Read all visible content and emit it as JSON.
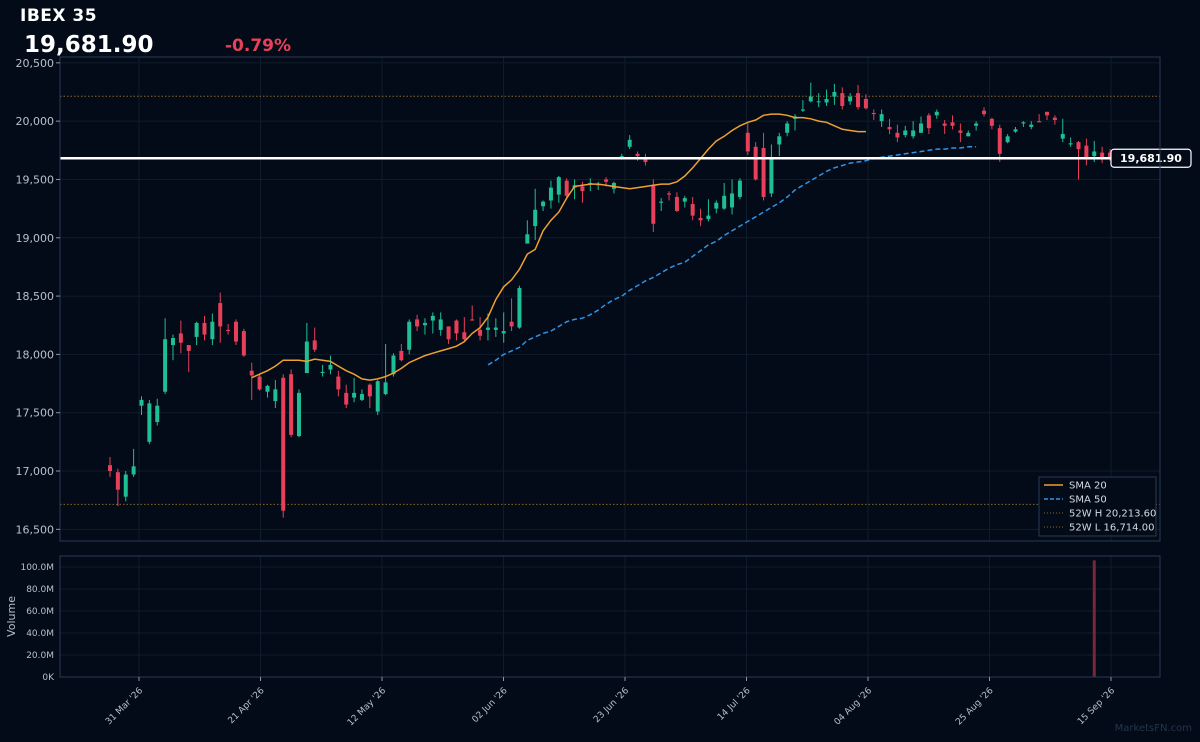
{
  "header": {
    "title": "IBEX 35",
    "last_price": "19,681.90",
    "change_pct": "-0.79%"
  },
  "colors": {
    "background": "#020b17",
    "panel_border": "#2b3b55",
    "grid": "#0f1c2c",
    "up": "#1fbf95",
    "down": "#e8405a",
    "sma20": "#f0a030",
    "sma50": "#2f93e6",
    "high_low_line": "#8a6a2a",
    "last_price_line": "#ffffff",
    "volume_bar": "#7a2638"
  },
  "last_price_label": "19,681.90",
  "watermark": "MarketsFN.com",
  "chart_data": {
    "type": "candlestick",
    "title": "IBEX 35",
    "y_axis": {
      "ylim": [
        16400,
        20550
      ],
      "ticks": [
        "16,500",
        "17,000",
        "17,500",
        "18,000",
        "18,500",
        "19,000",
        "19,500",
        "20,000",
        "20,500"
      ]
    },
    "x_axis": {
      "tick_labels": [
        "31 Mar '26",
        "21 Apr '26",
        "12 May '26",
        "02 Jun '26",
        "23 Jun '26",
        "14 Jul '26",
        "04 Aug '26",
        "25 Aug '26",
        "15 Sep '26"
      ]
    },
    "grid": true,
    "legend_position": "bottom-right",
    "candles": [
      [
        17050,
        17000,
        17120,
        16950
      ],
      [
        16990,
        16840,
        17020,
        16700
      ],
      [
        16780,
        16970,
        17000,
        16740
      ],
      [
        16970,
        17040,
        17190,
        16950
      ],
      [
        17560,
        17610,
        17640,
        17480
      ],
      [
        17250,
        17580,
        17610,
        17230
      ],
      [
        17420,
        17560,
        17620,
        17390
      ],
      [
        17680,
        18130,
        18310,
        17660
      ],
      [
        18080,
        18140,
        18170,
        17950
      ],
      [
        18180,
        18100,
        18290,
        18010
      ],
      [
        18080,
        18030,
        18040,
        17850
      ],
      [
        18150,
        18270,
        18280,
        18080
      ],
      [
        18270,
        18170,
        18330,
        18120
      ],
      [
        18130,
        18280,
        18350,
        18080
      ],
      [
        18440,
        18240,
        18530,
        18100
      ],
      [
        18210,
        18200,
        18260,
        18170
      ],
      [
        18280,
        18110,
        18300,
        18080
      ],
      [
        18200,
        17990,
        18220,
        17980
      ],
      [
        17860,
        17820,
        17930,
        17610
      ],
      [
        17810,
        17700,
        17830,
        17690
      ],
      [
        17680,
        17730,
        17740,
        17630
      ],
      [
        17600,
        17700,
        17780,
        17540
      ],
      [
        17800,
        16660,
        17830,
        16600
      ],
      [
        17830,
        17310,
        17870,
        17290
      ],
      [
        17300,
        17670,
        17700,
        17290
      ],
      [
        17840,
        18110,
        18270,
        17910
      ],
      [
        18120,
        18040,
        18230,
        18020
      ],
      [
        17840,
        17850,
        17910,
        17810
      ],
      [
        17870,
        17910,
        17990,
        17830
      ],
      [
        17810,
        17700,
        17860,
        17640
      ],
      [
        17670,
        17570,
        17740,
        17540
      ],
      [
        17630,
        17670,
        17800,
        17590
      ],
      [
        17610,
        17660,
        17700,
        17600
      ],
      [
        17740,
        17640,
        17750,
        17540
      ],
      [
        17510,
        17770,
        17780,
        17480
      ],
      [
        17660,
        17760,
        18090,
        17650
      ],
      [
        17830,
        17990,
        18010,
        17810
      ],
      [
        18030,
        17950,
        18090,
        17940
      ],
      [
        18040,
        18280,
        18300,
        18000
      ],
      [
        18300,
        18240,
        18340,
        18200
      ],
      [
        18250,
        18270,
        18310,
        18170
      ],
      [
        18290,
        18330,
        18360,
        18180
      ],
      [
        18210,
        18300,
        18360,
        18160
      ],
      [
        18240,
        18130,
        18240,
        18090
      ],
      [
        18290,
        18180,
        18300,
        18120
      ],
      [
        18190,
        18130,
        18320,
        18110
      ],
      [
        18300,
        18290,
        18420,
        18290
      ],
      [
        18210,
        18160,
        18320,
        18120
      ],
      [
        18210,
        18230,
        18350,
        18120
      ],
      [
        18210,
        18230,
        18310,
        18150
      ],
      [
        18180,
        18200,
        18360,
        18100
      ],
      [
        18280,
        18240,
        18480,
        18200
      ],
      [
        18230,
        18570,
        18590,
        18220
      ],
      [
        18950,
        19030,
        19150,
        18990
      ],
      [
        19100,
        19240,
        19420,
        18980
      ],
      [
        19270,
        19310,
        19320,
        19230
      ],
      [
        19320,
        19430,
        19490,
        19250
      ],
      [
        19370,
        19520,
        19530,
        19300
      ],
      [
        19490,
        19360,
        19510,
        19340
      ],
      [
        19430,
        19450,
        19500,
        19330
      ],
      [
        19440,
        19400,
        19480,
        19300
      ],
      [
        19460,
        19470,
        19510,
        19400
      ],
      [
        19450,
        19460,
        19480,
        19410
      ],
      [
        19500,
        19480,
        19520,
        19440
      ],
      [
        19420,
        19470,
        19480,
        19380
      ],
      [
        19690,
        19700,
        19720,
        19670
      ],
      [
        19780,
        19840,
        19880,
        19760
      ],
      [
        19720,
        19700,
        19740,
        19660
      ],
      [
        19690,
        19650,
        19720,
        19620
      ],
      [
        19450,
        19120,
        19500,
        19050
      ],
      [
        19300,
        19310,
        19340,
        19230
      ],
      [
        19380,
        19370,
        19400,
        19320
      ],
      [
        19350,
        19230,
        19390,
        19220
      ],
      [
        19310,
        19340,
        19360,
        19260
      ],
      [
        19290,
        19190,
        19350,
        19150
      ],
      [
        19170,
        19150,
        19250,
        19100
      ],
      [
        19160,
        19190,
        19330,
        19140
      ],
      [
        19250,
        19300,
        19320,
        19210
      ],
      [
        19250,
        19360,
        19470,
        19240
      ],
      [
        19260,
        19380,
        19500,
        19200
      ],
      [
        19350,
        19490,
        19510,
        19330
      ],
      [
        19900,
        19740,
        19980,
        19710
      ],
      [
        19780,
        19500,
        19820,
        19490
      ],
      [
        19770,
        19350,
        19900,
        19320
      ],
      [
        19380,
        19690,
        19800,
        19350
      ],
      [
        19800,
        19870,
        19900,
        19700
      ],
      [
        19900,
        19980,
        20000,
        19870
      ],
      [
        20020,
        20040,
        20060,
        19920
      ],
      [
        20090,
        20100,
        20180,
        20080
      ],
      [
        20170,
        20210,
        20330,
        20160
      ],
      [
        20170,
        20170,
        20240,
        20120
      ],
      [
        20160,
        20190,
        20270,
        20130
      ],
      [
        20210,
        20250,
        20320,
        20140
      ],
      [
        20240,
        20130,
        20290,
        20100
      ],
      [
        20170,
        20210,
        20240,
        20140
      ],
      [
        20240,
        20120,
        20310,
        20100
      ],
      [
        20190,
        20110,
        20230,
        20100
      ],
      [
        20070,
        20060,
        20100,
        20010
      ],
      [
        20000,
        20060,
        20100,
        19950
      ],
      [
        19950,
        19930,
        20020,
        19890
      ],
      [
        19900,
        19860,
        19970,
        19820
      ],
      [
        19880,
        19920,
        19960,
        19860
      ],
      [
        19870,
        19920,
        20000,
        19850
      ],
      [
        19900,
        19980,
        20040,
        19900
      ],
      [
        20050,
        19940,
        20070,
        19890
      ],
      [
        20050,
        20080,
        20100,
        20020
      ],
      [
        19980,
        19960,
        20010,
        19890
      ],
      [
        19990,
        19960,
        20050,
        19930
      ],
      [
        19920,
        19900,
        19980,
        19820
      ],
      [
        19870,
        19900,
        19920,
        19870
      ],
      [
        19960,
        19980,
        20000,
        19920
      ],
      [
        20090,
        20060,
        20120,
        20040
      ],
      [
        20020,
        19960,
        20030,
        19930
      ],
      [
        19940,
        19720,
        19970,
        19650
      ],
      [
        19820,
        19870,
        19890,
        19810
      ],
      [
        19910,
        19930,
        19950,
        19900
      ],
      [
        19980,
        19990,
        20000,
        19950
      ],
      [
        19950,
        19970,
        20000,
        19930
      ],
      [
        20000,
        19990,
        20060,
        19990
      ],
      [
        20080,
        20050,
        20080,
        20010
      ],
      [
        20030,
        20010,
        20050,
        19970
      ],
      [
        19850,
        19890,
        20020,
        19820
      ],
      [
        19800,
        19810,
        19860,
        19780
      ],
      [
        19820,
        19760,
        19830,
        19500
      ],
      [
        19790,
        19690,
        19850,
        19620
      ],
      [
        19700,
        19740,
        19830,
        19650
      ],
      [
        19730,
        19690,
        19780,
        19640
      ],
      [
        19730,
        19680,
        19760,
        19660
      ]
    ],
    "sma20": {
      "name": "SMA 20",
      "start_index": 18,
      "values": [
        17800,
        17830,
        17860,
        17900,
        17950,
        17950,
        17950,
        17940,
        17960,
        17950,
        17940,
        17900,
        17860,
        17830,
        17790,
        17780,
        17790,
        17810,
        17840,
        17880,
        17930,
        17960,
        17990,
        18010,
        18030,
        18050,
        18070,
        18110,
        18180,
        18230,
        18320,
        18470,
        18580,
        18640,
        18730,
        18860,
        18900,
        19060,
        19150,
        19220,
        19340,
        19440,
        19450,
        19460,
        19460,
        19450,
        19440,
        19430,
        19420,
        19430,
        19440,
        19450,
        19460,
        19460,
        19480,
        19530,
        19600,
        19680,
        19760,
        19830,
        19870,
        19920,
        19960,
        19990,
        20010,
        20050,
        20060,
        20060,
        20050,
        20030,
        20030,
        20020,
        20000,
        19990,
        19960,
        19930,
        19920,
        19910,
        19910
      ]
    },
    "sma50": {
      "name": "SMA 50",
      "start_index": 48,
      "values": [
        17910,
        17950,
        18000,
        18030,
        18060,
        18120,
        18150,
        18180,
        18200,
        18240,
        18280,
        18300,
        18310,
        18340,
        18380,
        18430,
        18470,
        18500,
        18550,
        18590,
        18630,
        18660,
        18700,
        18740,
        18770,
        18790,
        18840,
        18890,
        18940,
        18970,
        19020,
        19060,
        19100,
        19140,
        19180,
        19220,
        19260,
        19300,
        19350,
        19410,
        19450,
        19490,
        19530,
        19570,
        19600,
        19620,
        19640,
        19650,
        19660,
        19680,
        19690,
        19700,
        19710,
        19720,
        19730,
        19740,
        19750,
        19760,
        19760,
        19770,
        19770,
        19780,
        19780
      ]
    },
    "high_52w": {
      "label": "52W H 20,213.60",
      "value": 20213.6
    },
    "low_52w": {
      "label": "52W L 16,714.00",
      "value": 16714.0
    },
    "last_value": 19681.9,
    "volume": {
      "ylabel": "Volume",
      "ylim": [
        0,
        110000000
      ],
      "ticks": [
        "0K",
        "20.0M",
        "40.0M",
        "60.0M",
        "80.0M",
        "100.0M"
      ],
      "bars": [
        {
          "index": 125,
          "value": 106000000
        }
      ]
    },
    "legend": [
      "SMA 20",
      "SMA 50",
      "52W H 20,213.60",
      "52W L 16,714.00"
    ]
  }
}
